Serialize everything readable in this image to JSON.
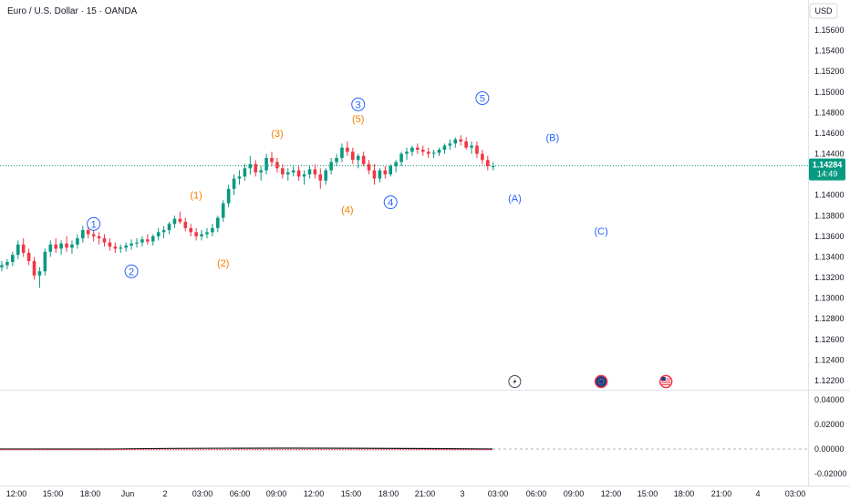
{
  "header": {
    "symbol_title": "Euro / U.S. Dollar · 15 · OANDA",
    "currency": "USD"
  },
  "price_axis": {
    "ticks": [
      "1.15600",
      "1.15400",
      "1.15200",
      "1.15000",
      "1.14800",
      "1.14600",
      "1.14400",
      "1.14000",
      "1.13800",
      "1.13600",
      "1.13400",
      "1.13200",
      "1.13000",
      "1.12800",
      "1.12600",
      "1.12400",
      "1.12200"
    ],
    "tick_values": [
      1.156,
      1.154,
      1.152,
      1.15,
      1.148,
      1.146,
      1.144,
      1.14,
      1.138,
      1.136,
      1.134,
      1.132,
      1.13,
      1.128,
      1.126,
      1.124,
      1.122
    ],
    "current_price": "1.14284",
    "current_value": 1.14284,
    "countdown": "14:49"
  },
  "indicator_axis": {
    "ticks": [
      "0.04000",
      "0.02000",
      "0.00000",
      "-0.02000"
    ],
    "tick_values": [
      0.04,
      0.02,
      0.0,
      -0.02
    ]
  },
  "time_axis": {
    "ticks": [
      "12:00",
      "15:00",
      "18:00",
      "Jun",
      "2",
      "03:00",
      "06:00",
      "09:00",
      "12:00",
      "15:00",
      "18:00",
      "21:00",
      "3",
      "03:00",
      "06:00",
      "09:00",
      "12:00",
      "15:00",
      "18:00",
      "21:00",
      "4",
      "03:00"
    ]
  },
  "wave_labels": [
    {
      "text": "1",
      "circled": true,
      "color": "#2962ff",
      "bar": 17,
      "price": 1.1372
    },
    {
      "text": "2",
      "circled": true,
      "color": "#2962ff",
      "bar": 24,
      "price": 1.1326
    },
    {
      "text": "(1)",
      "circled": false,
      "color": "#f57c00",
      "bar": 36,
      "price": 1.14
    },
    {
      "text": "(2)",
      "circled": false,
      "color": "#f57c00",
      "bar": 41,
      "price": 1.1334
    },
    {
      "text": "(3)",
      "circled": false,
      "color": "#f57c00",
      "bar": 51,
      "price": 1.146
    },
    {
      "text": "3",
      "circled": true,
      "color": "#2962ff",
      "bar": 66,
      "price": 1.1488
    },
    {
      "text": "(5)",
      "circled": false,
      "color": "#f57c00",
      "bar": 66,
      "price": 1.1474
    },
    {
      "text": "(4)",
      "circled": false,
      "color": "#f57c00",
      "bar": 64,
      "price": 1.1386
    },
    {
      "text": "4",
      "circled": true,
      "color": "#2962ff",
      "bar": 72,
      "price": 1.1393
    },
    {
      "text": "5",
      "circled": true,
      "color": "#2962ff",
      "bar": 89,
      "price": 1.1494
    },
    {
      "text": "(B)",
      "circled": false,
      "color": "#2962ff",
      "bar": 102,
      "price": 1.1456
    },
    {
      "text": "(A)",
      "circled": false,
      "color": "#2962ff",
      "bar": 95,
      "price": 1.1397
    },
    {
      "text": "(C)",
      "circled": false,
      "color": "#2962ff",
      "bar": 111,
      "price": 1.1365
    }
  ],
  "event_icons": [
    {
      "name": "lightning-event-icon",
      "bar": 95
    },
    {
      "name": "eu-flag-event-icon",
      "bar": 111
    },
    {
      "name": "us-flag-event-icon",
      "bar": 123
    }
  ],
  "colors": {
    "up": "#089981",
    "down": "#f23645",
    "wave_blue": "#2962ff",
    "wave_orange": "#f57c00",
    "price_line": "#089981"
  },
  "chart_data": {
    "type": "candlestick",
    "ohlc": [
      [
        1.133,
        1.1336,
        1.1326,
        1.1332
      ],
      [
        1.1332,
        1.1338,
        1.1328,
        1.1335
      ],
      [
        1.1335,
        1.1345,
        1.1331,
        1.1342
      ],
      [
        1.1342,
        1.1356,
        1.1338,
        1.1352
      ],
      [
        1.1352,
        1.1358,
        1.134,
        1.1344
      ],
      [
        1.1344,
        1.1348,
        1.1332,
        1.1336
      ],
      [
        1.1336,
        1.134,
        1.1318,
        1.1322
      ],
      [
        1.1322,
        1.133,
        1.131,
        1.1326
      ],
      [
        1.1326,
        1.1348,
        1.1322,
        1.1345
      ],
      [
        1.1345,
        1.1356,
        1.134,
        1.1352
      ],
      [
        1.1352,
        1.1358,
        1.1344,
        1.1348
      ],
      [
        1.1348,
        1.1356,
        1.1342,
        1.1353
      ],
      [
        1.1353,
        1.136,
        1.1345,
        1.1349
      ],
      [
        1.1349,
        1.1356,
        1.1343,
        1.1352
      ],
      [
        1.1352,
        1.1362,
        1.1348,
        1.1358
      ],
      [
        1.1358,
        1.137,
        1.1354,
        1.1366
      ],
      [
        1.1366,
        1.137,
        1.1358,
        1.1362
      ],
      [
        1.1362,
        1.1366,
        1.1355,
        1.136
      ],
      [
        1.136,
        1.1364,
        1.1352,
        1.1358
      ],
      [
        1.1358,
        1.1362,
        1.135,
        1.1354
      ],
      [
        1.1354,
        1.1358,
        1.1346,
        1.135
      ],
      [
        1.135,
        1.1354,
        1.1344,
        1.1348
      ],
      [
        1.1348,
        1.1352,
        1.1344,
        1.1349
      ],
      [
        1.1349,
        1.1354,
        1.1345,
        1.1351
      ],
      [
        1.1351,
        1.1357,
        1.1347,
        1.1353
      ],
      [
        1.1353,
        1.1358,
        1.1349,
        1.1354
      ],
      [
        1.1354,
        1.136,
        1.135,
        1.1357
      ],
      [
        1.1357,
        1.1362,
        1.1352,
        1.1355
      ],
      [
        1.1355,
        1.1362,
        1.1351,
        1.136
      ],
      [
        1.136,
        1.1368,
        1.1356,
        1.1364
      ],
      [
        1.1364,
        1.137,
        1.1358,
        1.1366
      ],
      [
        1.1366,
        1.1374,
        1.1362,
        1.1372
      ],
      [
        1.1372,
        1.138,
        1.1368,
        1.1377
      ],
      [
        1.1377,
        1.1384,
        1.1372,
        1.1374
      ],
      [
        1.1374,
        1.1378,
        1.1365,
        1.1368
      ],
      [
        1.1368,
        1.1372,
        1.136,
        1.1364
      ],
      [
        1.1364,
        1.1368,
        1.1356,
        1.136
      ],
      [
        1.136,
        1.1366,
        1.1356,
        1.1362
      ],
      [
        1.1362,
        1.1368,
        1.1358,
        1.1364
      ],
      [
        1.1364,
        1.1372,
        1.136,
        1.1368
      ],
      [
        1.1368,
        1.138,
        1.1364,
        1.1378
      ],
      [
        1.1378,
        1.1395,
        1.1374,
        1.1392
      ],
      [
        1.1392,
        1.141,
        1.1388,
        1.1406
      ],
      [
        1.1406,
        1.142,
        1.14,
        1.1416
      ],
      [
        1.1416,
        1.1424,
        1.141,
        1.1418
      ],
      [
        1.1418,
        1.143,
        1.1414,
        1.1426
      ],
      [
        1.1426,
        1.1438,
        1.142,
        1.143
      ],
      [
        1.143,
        1.1434,
        1.1418,
        1.1422
      ],
      [
        1.1422,
        1.1428,
        1.1414,
        1.1424
      ],
      [
        1.1424,
        1.144,
        1.142,
        1.1436
      ],
      [
        1.1436,
        1.1442,
        1.1428,
        1.1432
      ],
      [
        1.1432,
        1.1436,
        1.1422,
        1.1426
      ],
      [
        1.1426,
        1.143,
        1.1416,
        1.142
      ],
      [
        1.142,
        1.1426,
        1.1414,
        1.1422
      ],
      [
        1.1422,
        1.1428,
        1.1418,
        1.1424
      ],
      [
        1.1424,
        1.1428,
        1.1414,
        1.1418
      ],
      [
        1.1418,
        1.1424,
        1.141,
        1.142
      ],
      [
        1.142,
        1.1428,
        1.1416,
        1.1425
      ],
      [
        1.1425,
        1.143,
        1.1416,
        1.142
      ],
      [
        1.142,
        1.1426,
        1.1406,
        1.1414
      ],
      [
        1.1414,
        1.1426,
        1.141,
        1.1424
      ],
      [
        1.1424,
        1.1436,
        1.142,
        1.1432
      ],
      [
        1.1432,
        1.144,
        1.1428,
        1.1436
      ],
      [
        1.1436,
        1.145,
        1.1432,
        1.1446
      ],
      [
        1.1446,
        1.1452,
        1.1438,
        1.1442
      ],
      [
        1.1442,
        1.1446,
        1.143,
        1.1434
      ],
      [
        1.1434,
        1.144,
        1.1426,
        1.1438
      ],
      [
        1.1438,
        1.1442,
        1.1428,
        1.143
      ],
      [
        1.143,
        1.1434,
        1.142,
        1.1424
      ],
      [
        1.1424,
        1.143,
        1.141,
        1.1416
      ],
      [
        1.1416,
        1.1426,
        1.1412,
        1.1424
      ],
      [
        1.1424,
        1.1428,
        1.1416,
        1.142
      ],
      [
        1.142,
        1.143,
        1.1418,
        1.1428
      ],
      [
        1.1428,
        1.1434,
        1.1422,
        1.1432
      ],
      [
        1.1432,
        1.1442,
        1.1428,
        1.144
      ],
      [
        1.144,
        1.1446,
        1.1434,
        1.1442
      ],
      [
        1.1442,
        1.1448,
        1.1438,
        1.1446
      ],
      [
        1.1446,
        1.145,
        1.144,
        1.1444
      ],
      [
        1.1444,
        1.1448,
        1.1438,
        1.1442
      ],
      [
        1.1442,
        1.1446,
        1.1436,
        1.144
      ],
      [
        1.144,
        1.1444,
        1.1436,
        1.1441
      ],
      [
        1.1441,
        1.1446,
        1.1438,
        1.1444
      ],
      [
        1.1444,
        1.145,
        1.144,
        1.1448
      ],
      [
        1.1448,
        1.1454,
        1.1444,
        1.145
      ],
      [
        1.145,
        1.1456,
        1.1446,
        1.1454
      ],
      [
        1.1454,
        1.1458,
        1.1448,
        1.1452
      ],
      [
        1.1452,
        1.1456,
        1.1444,
        1.1446
      ],
      [
        1.1446,
        1.1452,
        1.144,
        1.1448
      ],
      [
        1.1448,
        1.1452,
        1.1436,
        1.144
      ],
      [
        1.144,
        1.1444,
        1.143,
        1.1434
      ],
      [
        1.1434,
        1.1438,
        1.1424,
        1.1428
      ],
      [
        1.1428,
        1.1432,
        1.1424,
        1.1428
      ]
    ]
  }
}
